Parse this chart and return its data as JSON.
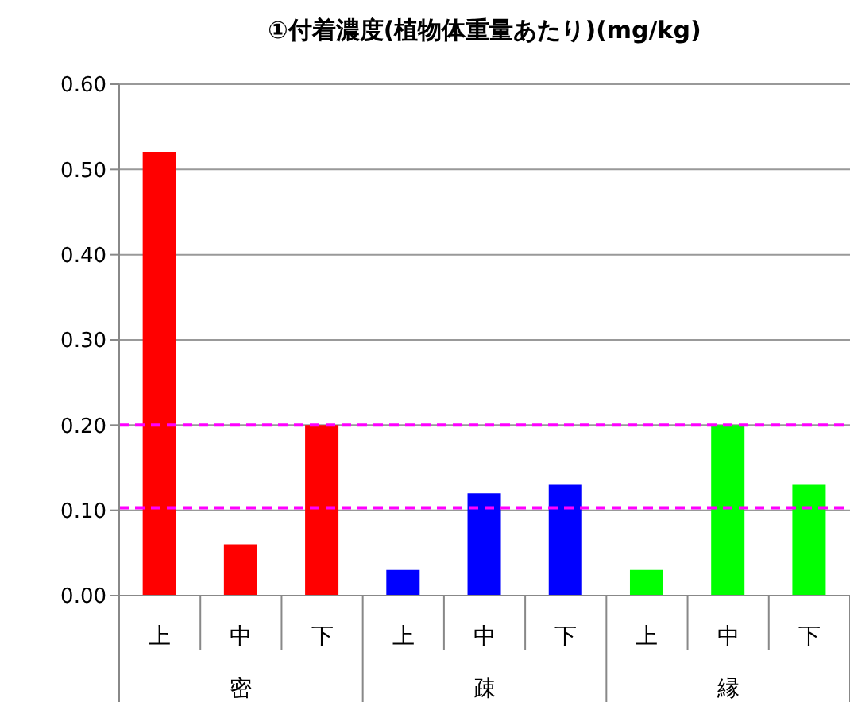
{
  "chart_data": {
    "type": "bar",
    "title": "①付着濃度(植物体重量あたり)(mg/kg)",
    "categories": [
      "上",
      "中",
      "下",
      "上",
      "中",
      "下",
      "上",
      "中",
      "下"
    ],
    "values": [
      0.52,
      0.06,
      0.2,
      0.03,
      0.12,
      0.13,
      0.03,
      0.2,
      0.13
    ],
    "colors": [
      "#ff0000",
      "#ff0000",
      "#ff0000",
      "#0000ff",
      "#0000ff",
      "#0000ff",
      "#00ff00",
      "#00ff00",
      "#00ff00"
    ],
    "annotations": [
      "密",
      "疎",
      "縁"
    ],
    "ylim": [
      0,
      0.6
    ],
    "yticks": [
      {
        "value": 0,
        "label": "0.00"
      },
      {
        "value": 0.1,
        "label": "0.10"
      },
      {
        "value": 0.2,
        "label": "0.20"
      },
      {
        "value": 0.3,
        "label": "0.30"
      },
      {
        "value": 0.4,
        "label": "0.40"
      },
      {
        "value": 0.5,
        "label": "0.50"
      },
      {
        "value": 0.6,
        "label": "0.60"
      }
    ],
    "grid": "y",
    "ref_lines": [
      {
        "axis": "y",
        "value": 0.2,
        "color": "#ff00ff",
        "line_style": "dashed"
      },
      {
        "axis": "y",
        "value": 0.103,
        "color": "#ff00ff",
        "line_style": "dashed"
      }
    ],
    "legend": false
  }
}
